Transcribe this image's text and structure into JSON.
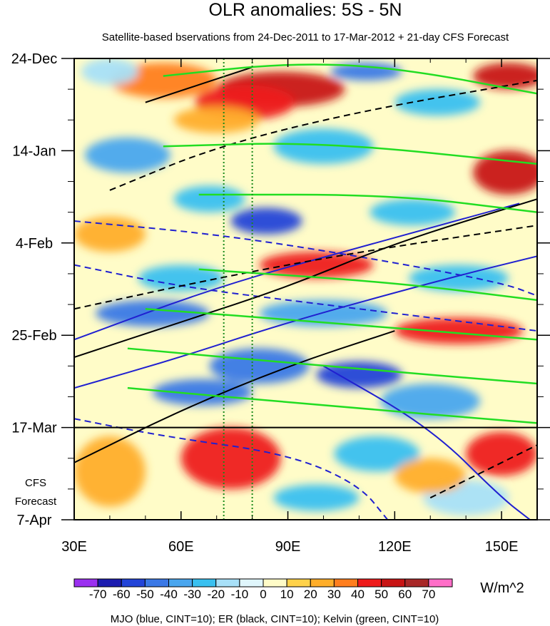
{
  "chart_data": {
    "type": "heatmap",
    "title": "OLR anomalies: 5S - 5N",
    "subtitle": "Satellite-based bservations from 24-Dec-2011 to 17-Mar-2012 + 21-day CFS Forecast",
    "x_axis": {
      "range": [
        30,
        160
      ],
      "ticks": [
        30,
        60,
        90,
        120,
        150
      ],
      "tick_labels": [
        "30E",
        "60E",
        "90E",
        "120E",
        "150E"
      ]
    },
    "y_axis": {
      "range_days": [
        0,
        105
      ],
      "ticks_days": [
        0,
        21,
        42,
        63,
        84,
        105
      ],
      "tick_labels": [
        "24-Dec",
        "14-Jan",
        "4-Feb",
        "25-Feb",
        "17-Mar",
        "7-Apr"
      ]
    },
    "forecast_label": [
      "CFS",
      "Forecast"
    ],
    "forecast_start_day": 84,
    "reference_lines_lon": [
      72,
      80
    ],
    "colorbar": {
      "levels": [
        -70,
        -60,
        -50,
        -40,
        -30,
        -20,
        -10,
        0,
        10,
        20,
        30,
        40,
        50,
        60,
        70
      ],
      "level_labels": [
        "-70",
        "-60",
        "-50",
        "-40",
        "-30",
        "-20",
        "-10",
        "0",
        "10",
        "20",
        "30",
        "40",
        "50",
        "60",
        "70"
      ],
      "colors": [
        "#9b30f0",
        "#1c1cb0",
        "#2244d8",
        "#3a78e6",
        "#4aa6ee",
        "#39c0f0",
        "#a8e0f8",
        "#e0f6fc",
        "#fffcc8",
        "#ffd24a",
        "#ffae2a",
        "#ff7e1e",
        "#ee1a1a",
        "#c81414",
        "#a82828",
        "#ff6ec8"
      ],
      "units": "W/m^2"
    },
    "footer": "MJO (blue, CINT=10); ER (black, CINT=10); Kelvin (green, CINT=10)",
    "anomaly_blobs": [
      {
        "lon": 55,
        "day": 5,
        "value": 30,
        "rx": 15,
        "ry": 4
      },
      {
        "lon": 88,
        "day": 7,
        "value": 50,
        "rx": 18,
        "ry": 4
      },
      {
        "lon": 78,
        "day": 10,
        "value": 40,
        "rx": 14,
        "ry": 4
      },
      {
        "lon": 152,
        "day": 4,
        "value": 50,
        "rx": 10,
        "ry": 3
      },
      {
        "lon": 40,
        "day": 3,
        "value": -20,
        "rx": 8,
        "ry": 3
      },
      {
        "lon": 112,
        "day": 3,
        "value": -50,
        "rx": 10,
        "ry": 2
      },
      {
        "lon": 132,
        "day": 10,
        "value": -30,
        "rx": 12,
        "ry": 3
      },
      {
        "lon": 70,
        "day": 14,
        "value": 20,
        "rx": 12,
        "ry": 3
      },
      {
        "lon": 45,
        "day": 22,
        "value": -40,
        "rx": 12,
        "ry": 4
      },
      {
        "lon": 100,
        "day": 20,
        "value": -30,
        "rx": 14,
        "ry": 4
      },
      {
        "lon": 152,
        "day": 26,
        "value": 50,
        "rx": 10,
        "ry": 5
      },
      {
        "lon": 84,
        "day": 37,
        "value": -60,
        "rx": 10,
        "ry": 3
      },
      {
        "lon": 68,
        "day": 32,
        "value": -30,
        "rx": 10,
        "ry": 3
      },
      {
        "lon": 125,
        "day": 35,
        "value": -30,
        "rx": 12,
        "ry": 3
      },
      {
        "lon": 40,
        "day": 40,
        "value": 20,
        "rx": 10,
        "ry": 4
      },
      {
        "lon": 98,
        "day": 47,
        "value": 40,
        "rx": 16,
        "ry": 3
      },
      {
        "lon": 60,
        "day": 50,
        "value": -30,
        "rx": 12,
        "ry": 3
      },
      {
        "lon": 138,
        "day": 50,
        "value": -30,
        "rx": 14,
        "ry": 3
      },
      {
        "lon": 52,
        "day": 58,
        "value": -50,
        "rx": 16,
        "ry": 3
      },
      {
        "lon": 100,
        "day": 58,
        "value": -40,
        "rx": 18,
        "ry": 3
      },
      {
        "lon": 138,
        "day": 62,
        "value": 40,
        "rx": 18,
        "ry": 3
      },
      {
        "lon": 82,
        "day": 70,
        "value": -50,
        "rx": 14,
        "ry": 4
      },
      {
        "lon": 110,
        "day": 72,
        "value": -60,
        "rx": 12,
        "ry": 3
      },
      {
        "lon": 66,
        "day": 76,
        "value": -50,
        "rx": 14,
        "ry": 3
      },
      {
        "lon": 130,
        "day": 78,
        "value": -40,
        "rx": 14,
        "ry": 4
      },
      {
        "lon": 74,
        "day": 91,
        "value": 40,
        "rx": 14,
        "ry": 7
      },
      {
        "lon": 40,
        "day": 94,
        "value": 20,
        "rx": 10,
        "ry": 8
      },
      {
        "lon": 115,
        "day": 90,
        "value": -30,
        "rx": 12,
        "ry": 4
      },
      {
        "lon": 98,
        "day": 100,
        "value": -30,
        "rx": 12,
        "ry": 3
      },
      {
        "lon": 150,
        "day": 90,
        "value": 40,
        "rx": 10,
        "ry": 5
      },
      {
        "lon": 140,
        "day": 100,
        "value": -20,
        "rx": 12,
        "ry": 4
      },
      {
        "lon": 130,
        "day": 95,
        "value": 20,
        "rx": 10,
        "ry": 4
      }
    ],
    "contours": [
      {
        "kind": "MJO",
        "dashed": false,
        "points": [
          [
            30,
            64
          ],
          [
            70,
            52
          ],
          [
            110,
            43
          ],
          [
            155,
            33
          ]
        ]
      },
      {
        "kind": "MJO",
        "dashed": false,
        "points": [
          [
            30,
            75
          ],
          [
            60,
            68
          ],
          [
            90,
            60
          ],
          [
            135,
            50
          ],
          [
            160,
            45
          ]
        ]
      },
      {
        "kind": "MJO",
        "dashed": true,
        "points": [
          [
            30,
            37
          ],
          [
            70,
            40
          ],
          [
            110,
            45
          ],
          [
            150,
            51
          ],
          [
            160,
            54
          ]
        ]
      },
      {
        "kind": "MJO",
        "dashed": true,
        "points": [
          [
            30,
            47
          ],
          [
            60,
            52
          ],
          [
            100,
            56
          ],
          [
            140,
            60
          ],
          [
            160,
            62
          ]
        ]
      },
      {
        "kind": "MJO",
        "dashed": true,
        "points": [
          [
            30,
            82
          ],
          [
            55,
            86
          ],
          [
            90,
            90
          ],
          [
            110,
            97
          ],
          [
            118,
            105
          ]
        ]
      },
      {
        "kind": "MJO",
        "dashed": false,
        "points": [
          [
            100,
            70
          ],
          [
            130,
            84
          ],
          [
            150,
            100
          ],
          [
            158,
            105
          ]
        ]
      },
      {
        "kind": "ER",
        "dashed": false,
        "points": [
          [
            30,
            68
          ],
          [
            60,
            60
          ],
          [
            90,
            52
          ],
          [
            120,
            42
          ],
          [
            160,
            32
          ]
        ]
      },
      {
        "kind": "ER",
        "dashed": false,
        "points": [
          [
            30,
            92
          ],
          [
            60,
            80
          ],
          [
            90,
            70
          ],
          [
            120,
            62
          ]
        ]
      },
      {
        "kind": "ER",
        "dashed": true,
        "points": [
          [
            40,
            30
          ],
          [
            70,
            20
          ],
          [
            110,
            12
          ],
          [
            160,
            5
          ]
        ]
      },
      {
        "kind": "ER",
        "dashed": false,
        "points": [
          [
            50,
            10
          ],
          [
            80,
            2
          ]
        ]
      },
      {
        "kind": "ER",
        "dashed": true,
        "points": [
          [
            30,
            57
          ],
          [
            70,
            50
          ],
          [
            110,
            44
          ],
          [
            160,
            38
          ]
        ]
      },
      {
        "kind": "ER",
        "dashed": true,
        "points": [
          [
            130,
            100
          ],
          [
            150,
            92
          ],
          [
            160,
            88
          ]
        ]
      },
      {
        "kind": "Kelvin",
        "dashed": false,
        "points": [
          [
            55,
            4
          ],
          [
            90,
            1
          ],
          [
            120,
            2
          ],
          [
            160,
            8
          ]
        ]
      },
      {
        "kind": "Kelvin",
        "dashed": false,
        "points": [
          [
            55,
            20
          ],
          [
            100,
            19
          ],
          [
            160,
            24
          ]
        ]
      },
      {
        "kind": "Kelvin",
        "dashed": false,
        "points": [
          [
            65,
            31
          ],
          [
            120,
            31
          ],
          [
            160,
            35
          ]
        ]
      },
      {
        "kind": "Kelvin",
        "dashed": false,
        "points": [
          [
            65,
            48
          ],
          [
            120,
            51
          ],
          [
            160,
            55
          ]
        ]
      },
      {
        "kind": "Kelvin",
        "dashed": false,
        "points": [
          [
            50,
            57
          ],
          [
            100,
            60
          ],
          [
            160,
            64
          ]
        ]
      },
      {
        "kind": "Kelvin",
        "dashed": false,
        "points": [
          [
            45,
            66
          ],
          [
            100,
            70
          ],
          [
            160,
            74
          ]
        ]
      },
      {
        "kind": "Kelvin",
        "dashed": false,
        "points": [
          [
            45,
            75
          ],
          [
            100,
            79
          ],
          [
            160,
            83
          ]
        ]
      }
    ]
  }
}
